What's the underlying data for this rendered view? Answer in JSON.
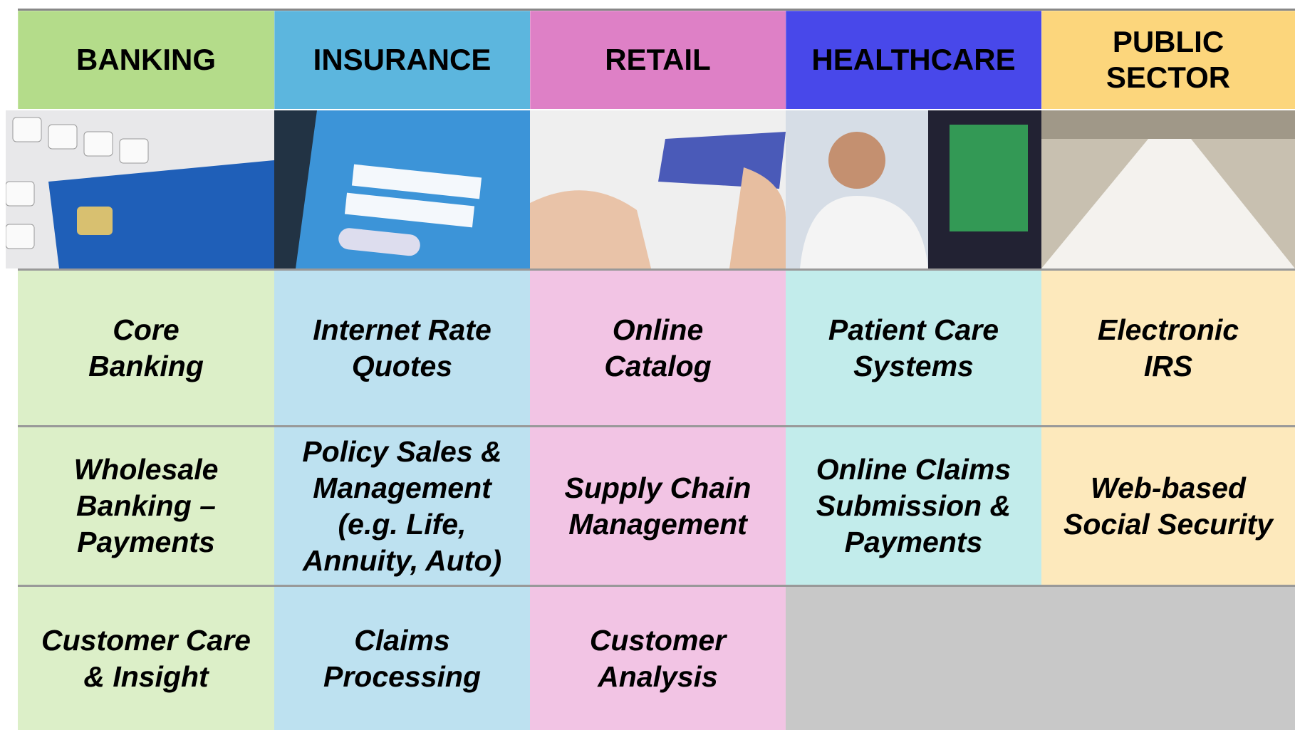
{
  "columns": [
    {
      "header": "BANKING",
      "cells": [
        "Core\nBanking",
        "Wholesale\nBanking –\nPayments",
        "Customer Care\n& Insight"
      ]
    },
    {
      "header": "INSURANCE",
      "cells": [
        "Internet Rate\nQuotes",
        "Policy Sales &\nManagement\n(e.g. Life,\nAnnuity, Auto)",
        "Claims\nProcessing"
      ]
    },
    {
      "header": "RETAIL",
      "cells": [
        "Online\nCatalog",
        "Supply Chain\nManagement",
        "Customer\nAnalysis"
      ]
    },
    {
      "header": "HEALTHCARE",
      "cells": [
        "Patient Care\nSystems",
        "Online Claims\nSubmission &\nPayments"
      ]
    },
    {
      "header": "PUBLIC\nSECTOR",
      "cells": [
        "Electronic\nIRS",
        "Web-based\nSocial Security"
      ]
    }
  ]
}
